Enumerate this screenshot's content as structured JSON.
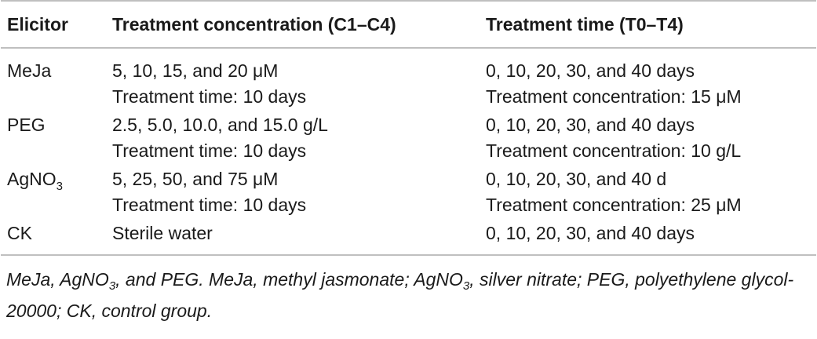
{
  "table": {
    "headers": {
      "elicitor": "Elicitor",
      "concentration": "Treatment concentration (C1–C4)",
      "time": "Treatment time (T0–T4)"
    },
    "rows": [
      {
        "elicitor": "MeJa",
        "conc_line1": "5, 10, 15, and 20 μM",
        "conc_line2": "Treatment time: 10 days",
        "time_line1": "0, 10, 20, 30, and 40 days",
        "time_line2": "Treatment concentration: 15 μM"
      },
      {
        "elicitor": "PEG",
        "conc_line1": "2.5, 5.0, 10.0, and 15.0 g/L",
        "conc_line2": "Treatment time: 10 days",
        "time_line1": "0, 10, 20, 30, and 40 days",
        "time_line2": "Treatment concentration: 10 g/L"
      },
      {
        "elicitor_main": "AgNO",
        "elicitor_sub": "3",
        "conc_line1": "5, 25, 50, and 75 μM",
        "conc_line2": "Treatment time: 10 days",
        "time_line1": "0, 10, 20, 30, and 40 d",
        "time_line2": "Treatment concentration: 25 μM"
      },
      {
        "elicitor": "CK",
        "conc_line1": "Sterile water",
        "time_line1": "0, 10, 20, 30, and 40 days"
      }
    ]
  },
  "footnote": {
    "part1": "MeJa, AgNO",
    "sub1": "3",
    "part2": ", and PEG. MeJa, methyl jasmonate; AgNO",
    "sub2": "3",
    "part3": ", silver nitrate; PEG, polyethylene glycol-20000; CK, control group."
  }
}
